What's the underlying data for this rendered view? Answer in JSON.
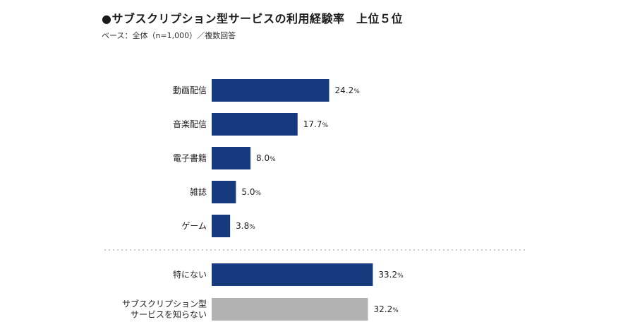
{
  "header": {
    "title": "●サブスクリプション型サービスの利用経験率　上位５位",
    "subtitle": "ベース：全体（n=1,000）／複数回答"
  },
  "chart_data": {
    "type": "bar",
    "orientation": "horizontal",
    "title": "●サブスクリプション型サービスの利用経験率　上位５位",
    "subtitle": "ベース：全体（n=1,000）／複数回答",
    "xlabel": "",
    "ylabel": "",
    "unit": "%",
    "xlim": [
      0,
      45
    ],
    "grid": false,
    "legend": "none",
    "divider_after_index": 4,
    "categories": [
      [
        "動画配信"
      ],
      [
        "音楽配信"
      ],
      [
        "電子書籍"
      ],
      [
        "雑誌"
      ],
      [
        "ゲーム"
      ],
      [
        "特にない"
      ],
      [
        "サブスクリプション型",
        "サービスを知らない"
      ]
    ],
    "values": [
      24.2,
      17.7,
      8.0,
      5.0,
      3.8,
      33.2,
      32.2
    ],
    "value_labels": [
      "24.2",
      "17.7",
      "8.0",
      "5.0",
      "3.8",
      "33.2",
      "32.2"
    ],
    "bar_colors": [
      "#163a7d",
      "#163a7d",
      "#163a7d",
      "#163a7d",
      "#163a7d",
      "#163a7d",
      "#b2b2b2"
    ],
    "divider_color": "#bbbbbb"
  }
}
